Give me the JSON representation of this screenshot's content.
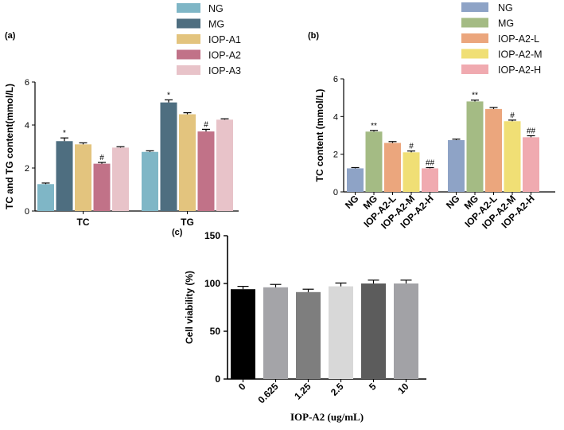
{
  "chart_data": [
    {
      "panel": "(a)",
      "type": "bar",
      "ylabel": "TC and TG content(mmol/L)",
      "ylim": [
        0,
        6
      ],
      "yticks": [
        0,
        2,
        4,
        6
      ],
      "categories": [
        "TC",
        "TG"
      ],
      "series": [
        {
          "name": "NG",
          "color": "#7fb6c6",
          "values": [
            1.25,
            2.75
          ],
          "errors": [
            0.05,
            0.05
          ],
          "annotations": [
            "",
            ""
          ]
        },
        {
          "name": "MG",
          "color": "#4e6e80",
          "values": [
            3.25,
            5.05
          ],
          "errors": [
            0.15,
            0.12
          ],
          "annotations": [
            "*",
            "*"
          ]
        },
        {
          "name": "IOP-A1",
          "color": "#e3c47e",
          "values": [
            3.1,
            4.5
          ],
          "errors": [
            0.07,
            0.07
          ],
          "annotations": [
            "",
            ""
          ]
        },
        {
          "name": "IOP-A2",
          "color": "#c17288",
          "values": [
            2.2,
            3.7
          ],
          "errors": [
            0.06,
            0.1
          ],
          "annotations": [
            "#",
            "#"
          ]
        },
        {
          "name": "IOP-A3",
          "color": "#e8c3c9",
          "values": [
            2.95,
            4.25
          ],
          "errors": [
            0.04,
            0.04
          ],
          "annotations": [
            "",
            ""
          ]
        }
      ]
    },
    {
      "panel": "(b)",
      "type": "bar",
      "ylabel": "TC content (mmol/L)",
      "ylim": [
        0,
        6
      ],
      "yticks": [
        0,
        2,
        4,
        6
      ],
      "groups": [
        {
          "categories": [
            "NG",
            "MG",
            "IOP-A2-L",
            "IOP-A2-M",
            "IOP-A2-H"
          ],
          "values": [
            1.25,
            3.2,
            2.6,
            2.1,
            1.25
          ],
          "errors": [
            0.04,
            0.06,
            0.07,
            0.07,
            0.04
          ],
          "annotations": [
            "",
            "**",
            "",
            "#",
            "##"
          ]
        },
        {
          "categories": [
            "NG",
            "MG",
            "IOP-A2-L",
            "IOP-A2-M",
            "IOP-A2-H"
          ],
          "values": [
            2.75,
            4.8,
            4.4,
            3.75,
            2.9
          ],
          "errors": [
            0.05,
            0.07,
            0.08,
            0.06,
            0.08
          ],
          "annotations": [
            "",
            "**",
            "",
            "#",
            "##"
          ]
        }
      ],
      "legend": [
        {
          "name": "NG",
          "color": "#8ea3c6"
        },
        {
          "name": "MG",
          "color": "#a4bb84"
        },
        {
          "name": "IOP-A2-L",
          "color": "#eba67d"
        },
        {
          "name": "IOP-A2-M",
          "color": "#f0df75"
        },
        {
          "name": "IOP-A2-H",
          "color": "#f0aab0"
        }
      ]
    },
    {
      "panel": "(c)",
      "type": "bar",
      "xlabel": "IOP-A2 (ug/mL)",
      "ylabel": "Cell viability (%)",
      "ylim": [
        0,
        150
      ],
      "yticks": [
        0,
        50,
        100,
        150
      ],
      "categories": [
        "0",
        "0.625",
        "1.25",
        "2.5",
        "5",
        "10"
      ],
      "values": [
        94,
        96,
        91,
        97,
        100,
        100
      ],
      "errors": [
        3,
        3,
        3,
        3.5,
        3.5,
        3.5
      ],
      "colors": [
        "#000000",
        "#a4a4a8",
        "#7e7e7e",
        "#d8d8d8",
        "#5c5c5c",
        "#a2a2a6"
      ]
    }
  ]
}
